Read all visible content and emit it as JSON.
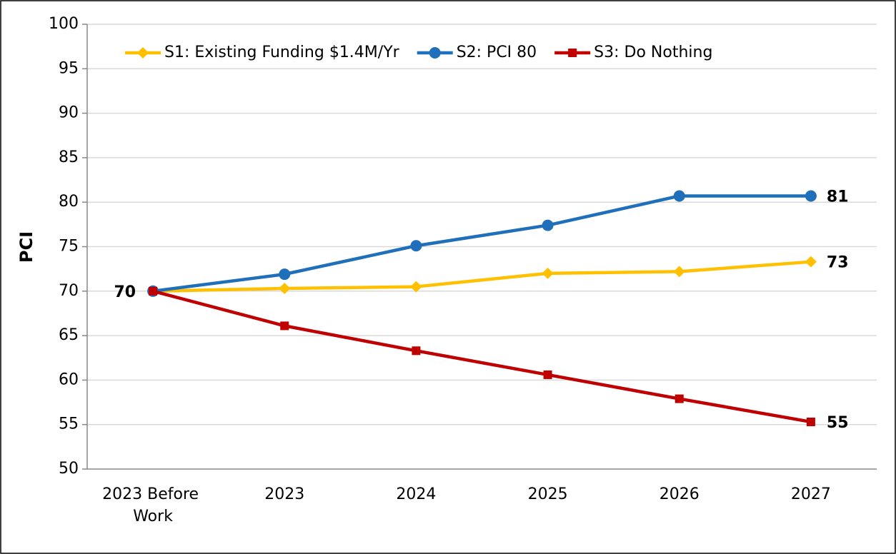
{
  "chart_data": {
    "type": "line",
    "y_label": "PCI",
    "categories": [
      "2023 Before Work",
      "2023",
      "2024",
      "2025",
      "2026",
      "2027"
    ],
    "series": [
      {
        "name": "S1: Existing Funding $1.4M/Yr",
        "color": "#ffc000",
        "marker": "diamond",
        "values": [
          70,
          70.3,
          70.5,
          72,
          72.2,
          73.3
        ],
        "value_labels": [
          "70",
          null,
          null,
          null,
          null,
          "73"
        ]
      },
      {
        "name": "S2: PCI 80",
        "color": "#1f6fba",
        "marker": "circle",
        "values": [
          70,
          71.9,
          75.1,
          77.4,
          80.7,
          80.7
        ],
        "value_labels": [
          null,
          null,
          null,
          null,
          null,
          "81"
        ]
      },
      {
        "name": "S3: Do Nothing",
        "color": "#c00000",
        "marker": "square",
        "values": [
          70,
          66.1,
          63.3,
          60.6,
          57.9,
          55.3
        ],
        "value_labels": [
          null,
          null,
          null,
          null,
          null,
          "55"
        ]
      }
    ],
    "ylim": [
      50,
      100
    ],
    "yticks": [
      50,
      55,
      60,
      65,
      70,
      75,
      80,
      85,
      90,
      95,
      100
    ],
    "grid": true,
    "legend": "top"
  }
}
